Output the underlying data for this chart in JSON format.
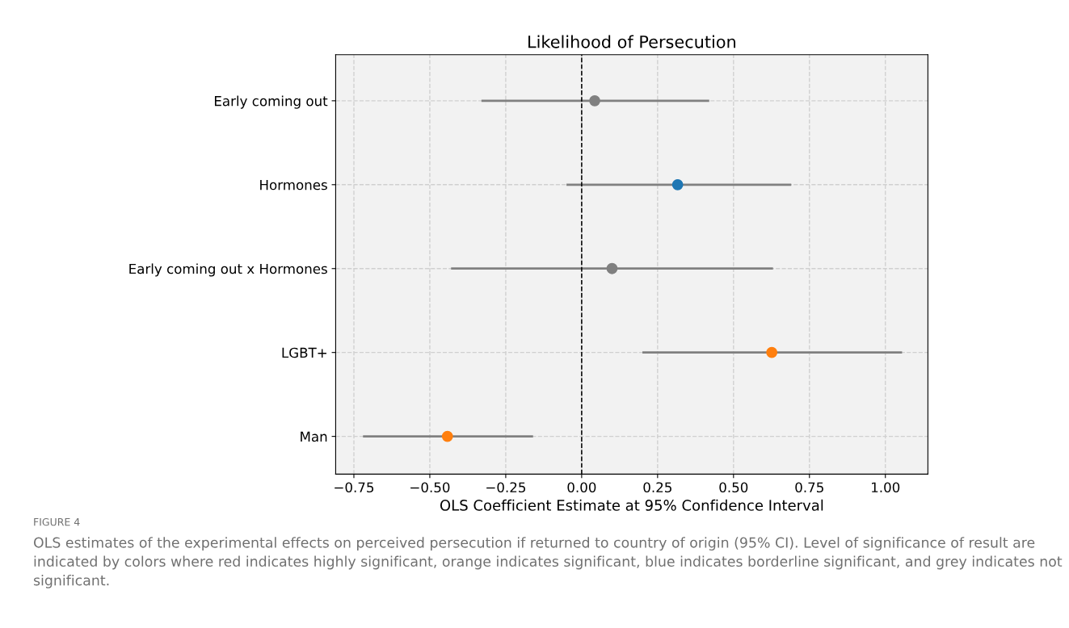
{
  "chart_data": {
    "type": "scatter",
    "orientation": "horizontal",
    "title": "Likelihood of Persecution",
    "xlabel": "OLS Coefficient Estimate at 95% Confidence Interval",
    "categories": [
      "Early coming out",
      "Hormones",
      "Early coming out x Hormones",
      "LGBT+",
      "Man"
    ],
    "values": [
      0.043,
      0.316,
      0.1,
      0.626,
      -0.442
    ],
    "errors": [
      [
        -0.33,
        0.42
      ],
      [
        -0.05,
        0.69
      ],
      [
        -0.43,
        0.63
      ],
      [
        0.2,
        1.055
      ],
      [
        -0.72,
        -0.16
      ]
    ],
    "colors": [
      "#808080",
      "#1f77b4",
      "#808080",
      "#ff7f0e",
      "#ff7f0e"
    ],
    "xlim": [
      -0.81,
      1.14
    ],
    "xticks": [
      {
        "value": -0.75,
        "label": "−0.75"
      },
      {
        "value": -0.5,
        "label": "−0.50"
      },
      {
        "value": -0.25,
        "label": "−0.25"
      },
      {
        "value": 0,
        "label": "0.00"
      },
      {
        "value": 0.25,
        "label": "0.25"
      },
      {
        "value": 0.5,
        "label": "0.50"
      },
      {
        "value": 0.75,
        "label": "0.75"
      },
      {
        "value": 1.0,
        "label": "1.00"
      }
    ],
    "ref_lines": [
      {
        "axis": "x",
        "value": 0,
        "color": "#000000",
        "line_style": "dashed"
      }
    ],
    "grid": true,
    "marker": "circle",
    "annotations": [
      "FIGURE 4",
      "OLS estimates of the experimental effects on perceived persecution if returned to country of origin (95% CI). Level of significance of result are indicated by colors where red indicates highly significant, orange indicates significant, blue indicates borderline significant, and grey indicates not significant."
    ]
  }
}
